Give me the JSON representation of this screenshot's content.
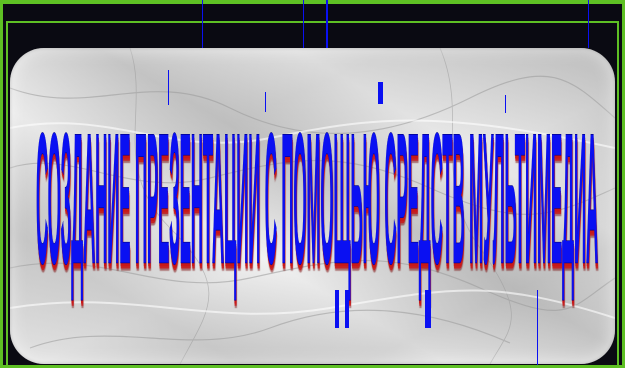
{
  "title_text": "СОЗДАНИЕ ПРЕЗЕНТАЦИИ С ПОМОЩЬЮ СРЕДСТВ МУЛЬТИМЕДИА",
  "colors": {
    "title": "#0a10f2",
    "title_shadow": "#c81818",
    "frame_border": "#5ec024",
    "background": "#06070d",
    "plaque": "marble-grey"
  }
}
